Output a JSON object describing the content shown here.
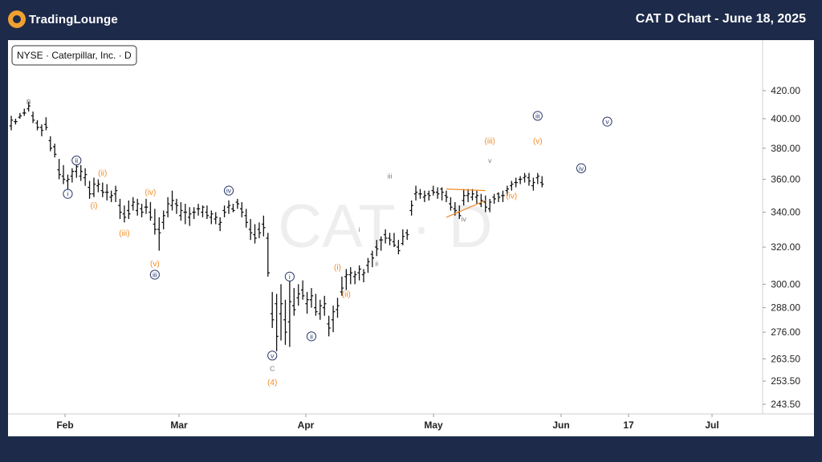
{
  "header": {
    "logo_text": "TradingLounge",
    "title": "CAT D Chart - June 18, 2025"
  },
  "legend": {
    "symbol_label": "NYSE · Caterpillar, Inc. · D"
  },
  "watermark": "CAT · D",
  "chart_data": {
    "type": "ohlc",
    "y_axis": {
      "scale": "log",
      "ticks": [
        420.0,
        400.0,
        380.0,
        360.0,
        340.0,
        320.0,
        300.0,
        288.0,
        276.0,
        263.5,
        253.5,
        243.5
      ],
      "tick_labels": [
        "420.00",
        "400.00",
        "380.00",
        "360.00",
        "340.00",
        "320.00",
        "300.00",
        "288.00",
        "276.00",
        "263.50",
        "253.50",
        "243.50"
      ]
    },
    "x_axis": {
      "tick_labels": [
        "Feb",
        "Mar",
        "Apr",
        "May",
        "Jun",
        "17",
        "Jul"
      ]
    },
    "bars": [
      [
        395,
        402,
        392,
        399
      ],
      [
        398,
        400,
        396,
        398
      ],
      [
        401,
        404,
        400,
        402
      ],
      [
        404,
        407,
        402,
        404
      ],
      [
        407,
        412,
        405,
        409
      ],
      [
        402,
        405,
        397,
        399
      ],
      [
        397,
        399,
        392,
        394
      ],
      [
        394,
        396,
        388,
        392
      ],
      [
        396,
        401,
        392,
        394
      ],
      [
        385,
        388,
        378,
        380
      ],
      [
        381,
        383,
        374,
        376
      ],
      [
        366,
        373,
        360,
        363
      ],
      [
        362,
        369,
        357,
        360
      ],
      [
        359,
        363,
        353,
        360
      ],
      [
        362,
        367,
        358,
        365
      ],
      [
        365,
        370,
        361,
        368
      ],
      [
        362,
        369,
        359,
        365
      ],
      [
        361,
        367,
        356,
        363
      ],
      [
        355,
        359,
        348,
        351
      ],
      [
        351,
        361,
        349,
        357
      ],
      [
        356,
        360,
        352,
        357
      ],
      [
        353,
        358,
        349,
        352
      ],
      [
        352,
        357,
        347,
        352
      ],
      [
        349,
        353,
        346,
        350
      ],
      [
        351,
        356,
        346,
        353
      ],
      [
        344,
        348,
        336,
        340
      ],
      [
        339,
        344,
        334,
        337
      ],
      [
        341,
        347,
        336,
        339
      ],
      [
        344,
        349,
        341,
        346
      ],
      [
        341,
        348,
        338,
        345
      ],
      [
        342,
        345,
        337,
        340
      ],
      [
        343,
        348,
        339,
        343
      ],
      [
        340,
        346,
        335,
        337
      ],
      [
        333,
        342,
        327,
        330
      ],
      [
        330,
        337,
        318,
        328
      ],
      [
        334,
        341,
        330,
        338
      ],
      [
        340,
        349,
        337,
        345
      ],
      [
        344,
        353,
        341,
        347
      ],
      [
        345,
        348,
        339,
        344
      ],
      [
        338,
        346,
        335,
        341
      ],
      [
        340,
        345,
        333,
        340
      ],
      [
        337,
        343,
        332,
        339
      ],
      [
        340,
        343,
        336,
        340
      ],
      [
        342,
        345,
        338,
        342
      ],
      [
        340,
        344,
        337,
        343
      ],
      [
        340,
        344,
        336,
        338
      ],
      [
        337,
        341,
        333,
        339
      ],
      [
        336,
        340,
        333,
        337
      ],
      [
        333,
        337,
        329,
        334
      ],
      [
        341,
        344,
        337,
        340
      ],
      [
        343,
        347,
        339,
        344
      ],
      [
        342,
        345,
        340,
        341
      ],
      [
        346,
        348,
        342,
        345
      ],
      [
        342,
        346,
        337,
        340
      ],
      [
        338,
        342,
        331,
        334
      ],
      [
        330,
        336,
        324,
        328
      ],
      [
        327,
        333,
        322,
        325
      ],
      [
        330,
        334,
        325,
        328
      ],
      [
        333,
        338,
        326,
        331
      ],
      [
        325,
        328,
        304,
        306
      ],
      [
        285,
        296,
        278,
        282
      ],
      [
        290,
        295,
        267,
        274
      ],
      [
        285,
        300,
        272,
        290
      ],
      [
        282,
        292,
        270,
        276
      ],
      [
        281,
        302,
        269,
        291
      ],
      [
        289,
        298,
        284,
        287
      ],
      [
        293,
        300,
        289,
        295
      ],
      [
        297,
        302,
        292,
        294
      ],
      [
        290,
        296,
        285,
        292
      ],
      [
        292,
        298,
        288,
        294
      ],
      [
        288,
        295,
        284,
        286
      ],
      [
        285,
        292,
        282,
        289
      ],
      [
        288,
        294,
        284,
        290
      ],
      [
        280,
        284,
        274,
        278
      ],
      [
        282,
        289,
        276,
        286
      ],
      [
        287,
        293,
        283,
        289
      ],
      [
        296,
        304,
        294,
        298
      ],
      [
        304,
        308,
        297,
        305
      ],
      [
        305,
        309,
        300,
        306
      ],
      [
        304,
        307,
        300,
        305
      ],
      [
        306,
        310,
        302,
        308
      ],
      [
        305,
        308,
        301,
        306
      ],
      [
        310,
        314,
        306,
        312
      ],
      [
        316,
        318,
        309,
        314
      ],
      [
        320,
        324,
        315,
        319
      ],
      [
        324,
        326,
        318,
        324
      ],
      [
        327,
        330,
        322,
        325
      ],
      [
        325,
        328,
        321,
        324
      ],
      [
        323,
        328,
        320,
        321
      ],
      [
        320,
        324,
        316,
        318
      ],
      [
        322,
        330,
        321,
        326
      ],
      [
        328,
        330,
        324,
        327
      ],
      [
        341,
        347,
        338,
        344
      ],
      [
        351,
        356,
        347,
        352
      ],
      [
        351,
        354,
        348,
        351
      ],
      [
        349,
        353,
        346,
        350
      ],
      [
        351,
        353,
        347,
        350
      ],
      [
        353,
        356,
        350,
        352
      ],
      [
        352,
        355,
        348,
        351
      ],
      [
        354,
        355,
        347,
        352
      ],
      [
        350,
        353,
        346,
        349
      ],
      [
        345,
        349,
        341,
        343
      ],
      [
        342,
        346,
        338,
        341
      ],
      [
        340,
        344,
        336,
        338
      ],
      [
        347,
        354,
        344,
        350
      ],
      [
        350,
        354,
        346,
        351
      ],
      [
        349,
        354,
        347,
        351
      ],
      [
        349,
        353,
        345,
        350
      ],
      [
        345,
        351,
        343,
        347
      ],
      [
        346,
        350,
        340,
        343
      ],
      [
        342,
        348,
        340,
        346
      ],
      [
        349,
        351,
        345,
        348
      ],
      [
        351,
        352,
        346,
        349
      ],
      [
        350,
        353,
        346,
        350
      ],
      [
        353,
        356,
        350,
        354
      ],
      [
        356,
        359,
        353,
        357
      ],
      [
        358,
        361,
        355,
        358
      ],
      [
        360,
        362,
        357,
        360
      ],
      [
        361,
        364,
        358,
        362
      ],
      [
        361,
        364,
        356,
        359
      ],
      [
        356,
        361,
        353,
        358
      ],
      [
        361,
        364,
        357,
        362
      ],
      [
        358,
        362,
        355,
        357
      ]
    ],
    "overlay_lines": [
      {
        "kind": "triangle-lines",
        "color": "#f28c28",
        "points": [
          [
            100,
            337
          ],
          [
            109,
            347
          ]
        ]
      },
      {
        "kind": "triangle-lines",
        "color": "#f28c28",
        "points": [
          [
            100,
            354
          ],
          [
            109,
            353
          ]
        ]
      }
    ],
    "wave_labels": [
      {
        "text": "B",
        "bar": 4,
        "price": 412,
        "style": "gray-plain"
      },
      {
        "text": "i",
        "bar": 13,
        "price": 351,
        "style": "navy-circle"
      },
      {
        "text": "ii",
        "bar": 15,
        "price": 372,
        "style": "navy-circle"
      },
      {
        "text": "(i)",
        "bar": 19,
        "price": 344,
        "style": "orange-plain"
      },
      {
        "text": "(ii)",
        "bar": 21,
        "price": 364,
        "style": "orange-plain"
      },
      {
        "text": "(iii)",
        "bar": 26,
        "price": 328,
        "style": "orange-plain"
      },
      {
        "text": "(iv)",
        "bar": 32,
        "price": 352,
        "style": "orange-plain"
      },
      {
        "text": "(v)",
        "bar": 33,
        "price": 311,
        "style": "orange-plain"
      },
      {
        "text": "iii",
        "bar": 33,
        "price": 305,
        "style": "navy-circle"
      },
      {
        "text": "iv",
        "bar": 50,
        "price": 353,
        "style": "navy-circle"
      },
      {
        "text": "v",
        "bar": 60,
        "price": 265,
        "style": "navy-circle"
      },
      {
        "text": "C",
        "bar": 60,
        "price": 259,
        "style": "gray-plain"
      },
      {
        "text": "(4)",
        "bar": 60,
        "price": 253,
        "style": "orange-plain"
      },
      {
        "text": "i",
        "bar": 64,
        "price": 304,
        "style": "navy-circle"
      },
      {
        "text": "ii",
        "bar": 69,
        "price": 274,
        "style": "navy-circle"
      },
      {
        "text": "(i)",
        "bar": 75,
        "price": 309,
        "style": "orange-plain"
      },
      {
        "text": "(ii)",
        "bar": 77,
        "price": 295,
        "style": "orange-plain"
      },
      {
        "text": "i",
        "bar": 80,
        "price": 330,
        "style": "gray-plain"
      },
      {
        "text": "ii",
        "bar": 84,
        "price": 311,
        "style": "gray-plain"
      },
      {
        "text": "iii",
        "bar": 87,
        "price": 362,
        "style": "gray-plain"
      },
      {
        "text": "iv",
        "bar": 104,
        "price": 336,
        "style": "gray-plain"
      },
      {
        "text": "(iii)",
        "bar": 110,
        "price": 385,
        "style": "orange-plain"
      },
      {
        "text": "v",
        "bar": 110,
        "price": 372,
        "style": "gray-plain"
      },
      {
        "text": "(iv)",
        "bar": 115,
        "price": 350,
        "style": "orange-plain"
      },
      {
        "text": "(v)",
        "bar": 121,
        "price": 385,
        "style": "orange-plain"
      },
      {
        "text": "iii",
        "bar": 121,
        "price": 402,
        "style": "navy-circle"
      },
      {
        "text": "iv",
        "bar": 131,
        "price": 367,
        "style": "navy-circle"
      },
      {
        "text": "v",
        "bar": 137,
        "price": 398,
        "style": "navy-circle"
      }
    ],
    "colors": {
      "background": "#1d2a4a",
      "plot_bg": "#ffffff",
      "bars": "#111111",
      "navy_label": "#2b3a6b",
      "orange_label": "#f28c28",
      "gray_label": "#777777",
      "watermark": "#eeeeee"
    }
  }
}
